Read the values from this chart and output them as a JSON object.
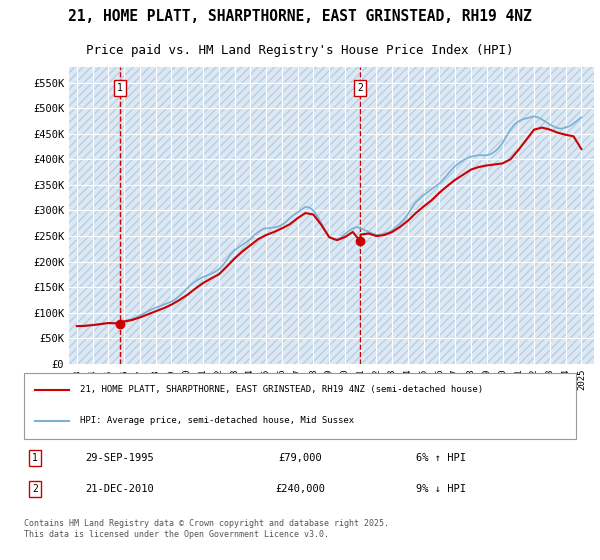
{
  "title1": "21, HOME PLATT, SHARPTHORNE, EAST GRINSTEAD, RH19 4NZ",
  "title2": "Price paid vs. HM Land Registry's House Price Index (HPI)",
  "ylabel": "",
  "background_color": "#dce9f5",
  "plot_bg": "#dce9f5",
  "hatch_color": "#c0d0e8",
  "grid_color": "#ffffff",
  "marker1": {
    "date_num": 1995.75,
    "value": 79000,
    "label": "1",
    "date_str": "29-SEP-1995",
    "price": "£79,000",
    "note": "6% ↑ HPI"
  },
  "marker2": {
    "date_num": 2010.97,
    "value": 240000,
    "label": "2",
    "date_str": "21-DEC-2010",
    "price": "£240,000",
    "note": "9% ↓ HPI"
  },
  "legend_line1": "21, HOME PLATT, SHARPTHORNE, EAST GRINSTEAD, RH19 4NZ (semi-detached house)",
  "legend_line2": "HPI: Average price, semi-detached house, Mid Sussex",
  "footer": "Contains HM Land Registry data © Crown copyright and database right 2025.\nThis data is licensed under the Open Government Licence v3.0.",
  "ylim": [
    0,
    580000
  ],
  "yticks": [
    0,
    50000,
    100000,
    150000,
    200000,
    250000,
    300000,
    350000,
    400000,
    450000,
    500000,
    550000
  ],
  "ytick_labels": [
    "£0",
    "£50K",
    "£100K",
    "£150K",
    "£200K",
    "£250K",
    "£300K",
    "£350K",
    "£400K",
    "£450K",
    "£500K",
    "£550K"
  ],
  "xlim_start": 1992.5,
  "xlim_end": 2025.8,
  "xticks": [
    1993,
    1994,
    1995,
    1996,
    1997,
    1998,
    1999,
    2000,
    2001,
    2002,
    2003,
    2004,
    2005,
    2006,
    2007,
    2008,
    2009,
    2010,
    2011,
    2012,
    2013,
    2014,
    2015,
    2016,
    2017,
    2018,
    2019,
    2020,
    2021,
    2022,
    2023,
    2024,
    2025
  ],
  "hpi_color": "#7ab0d4",
  "price_color": "#cc0000",
  "marker_color": "#cc0000",
  "dashed_line_color": "#cc0000",
  "hpi_data_x": [
    1993.0,
    1993.25,
    1993.5,
    1993.75,
    1994.0,
    1994.25,
    1994.5,
    1994.75,
    1995.0,
    1995.25,
    1995.5,
    1995.75,
    1996.0,
    1996.25,
    1996.5,
    1996.75,
    1997.0,
    1997.25,
    1997.5,
    1997.75,
    1998.0,
    1998.25,
    1998.5,
    1998.75,
    1999.0,
    1999.25,
    1999.5,
    1999.75,
    2000.0,
    2000.25,
    2000.5,
    2000.75,
    2001.0,
    2001.25,
    2001.5,
    2001.75,
    2002.0,
    2002.25,
    2002.5,
    2002.75,
    2003.0,
    2003.25,
    2003.5,
    2003.75,
    2004.0,
    2004.25,
    2004.5,
    2004.75,
    2005.0,
    2005.25,
    2005.5,
    2005.75,
    2006.0,
    2006.25,
    2006.5,
    2006.75,
    2007.0,
    2007.25,
    2007.5,
    2007.75,
    2008.0,
    2008.25,
    2008.5,
    2008.75,
    2009.0,
    2009.25,
    2009.5,
    2009.75,
    2010.0,
    2010.25,
    2010.5,
    2010.75,
    2011.0,
    2011.25,
    2011.5,
    2011.75,
    2012.0,
    2012.25,
    2012.5,
    2012.75,
    2013.0,
    2013.25,
    2013.5,
    2013.75,
    2014.0,
    2014.25,
    2014.5,
    2014.75,
    2015.0,
    2015.25,
    2015.5,
    2015.75,
    2016.0,
    2016.25,
    2016.5,
    2016.75,
    2017.0,
    2017.25,
    2017.5,
    2017.75,
    2018.0,
    2018.25,
    2018.5,
    2018.75,
    2019.0,
    2019.25,
    2019.5,
    2019.75,
    2020.0,
    2020.25,
    2020.5,
    2020.75,
    2021.0,
    2021.25,
    2021.5,
    2021.75,
    2022.0,
    2022.25,
    2022.5,
    2022.75,
    2023.0,
    2023.25,
    2023.5,
    2023.75,
    2024.0,
    2024.25,
    2024.5,
    2024.75,
    2025.0
  ],
  "hpi_data_y": [
    74000,
    74500,
    75000,
    75500,
    76000,
    77000,
    78000,
    79500,
    80000,
    80500,
    81000,
    82000,
    84000,
    86000,
    88000,
    91000,
    95000,
    99000,
    103000,
    107000,
    110000,
    113000,
    116000,
    119000,
    122000,
    127000,
    133000,
    140000,
    148000,
    155000,
    161000,
    166000,
    170000,
    173000,
    176000,
    180000,
    185000,
    193000,
    203000,
    214000,
    222000,
    228000,
    233000,
    238000,
    244000,
    252000,
    258000,
    263000,
    265000,
    266000,
    267000,
    268000,
    272000,
    278000,
    285000,
    291000,
    296000,
    302000,
    307000,
    306000,
    300000,
    289000,
    275000,
    261000,
    248000,
    244000,
    243000,
    247000,
    254000,
    260000,
    265000,
    268000,
    265000,
    262000,
    258000,
    255000,
    252000,
    253000,
    255000,
    257000,
    261000,
    268000,
    275000,
    283000,
    293000,
    305000,
    316000,
    323000,
    330000,
    336000,
    342000,
    347000,
    353000,
    361000,
    370000,
    379000,
    387000,
    393000,
    398000,
    402000,
    405000,
    407000,
    408000,
    408000,
    408000,
    410000,
    415000,
    422000,
    432000,
    445000,
    458000,
    468000,
    474000,
    478000,
    480000,
    482000,
    484000,
    482000,
    478000,
    473000,
    468000,
    464000,
    461000,
    460000,
    462000,
    465000,
    470000,
    476000,
    482000
  ],
  "price_data_x": [
    1993.0,
    1993.5,
    1994.0,
    1994.5,
    1995.0,
    1995.75,
    1996.0,
    1996.5,
    1997.0,
    1997.5,
    1998.0,
    1998.5,
    1999.0,
    1999.5,
    2000.0,
    2000.5,
    2001.0,
    2001.5,
    2002.0,
    2002.5,
    2003.0,
    2003.5,
    2004.0,
    2004.5,
    2005.0,
    2005.5,
    2006.0,
    2006.5,
    2007.0,
    2007.5,
    2008.0,
    2008.5,
    2009.0,
    2009.5,
    2010.0,
    2010.5,
    2010.97,
    2011.0,
    2011.5,
    2012.0,
    2012.5,
    2013.0,
    2013.5,
    2014.0,
    2014.5,
    2015.0,
    2015.5,
    2016.0,
    2016.5,
    2017.0,
    2017.5,
    2018.0,
    2018.5,
    2019.0,
    2019.5,
    2020.0,
    2020.5,
    2021.0,
    2021.5,
    2022.0,
    2022.5,
    2023.0,
    2023.5,
    2024.0,
    2024.5,
    2025.0
  ],
  "price_data_y": [
    74000,
    74500,
    76000,
    78000,
    80000,
    79000,
    83000,
    86000,
    91000,
    97000,
    103000,
    109000,
    116000,
    125000,
    135000,
    147000,
    158000,
    167000,
    175000,
    190000,
    206000,
    220000,
    232000,
    244000,
    252000,
    258000,
    265000,
    273000,
    285000,
    295000,
    292000,
    272000,
    248000,
    242000,
    248000,
    258000,
    240000,
    253000,
    255000,
    250000,
    252000,
    258000,
    268000,
    280000,
    295000,
    308000,
    320000,
    335000,
    348000,
    360000,
    370000,
    380000,
    385000,
    388000,
    390000,
    392000,
    400000,
    418000,
    438000,
    458000,
    462000,
    458000,
    452000,
    448000,
    445000,
    420000
  ]
}
